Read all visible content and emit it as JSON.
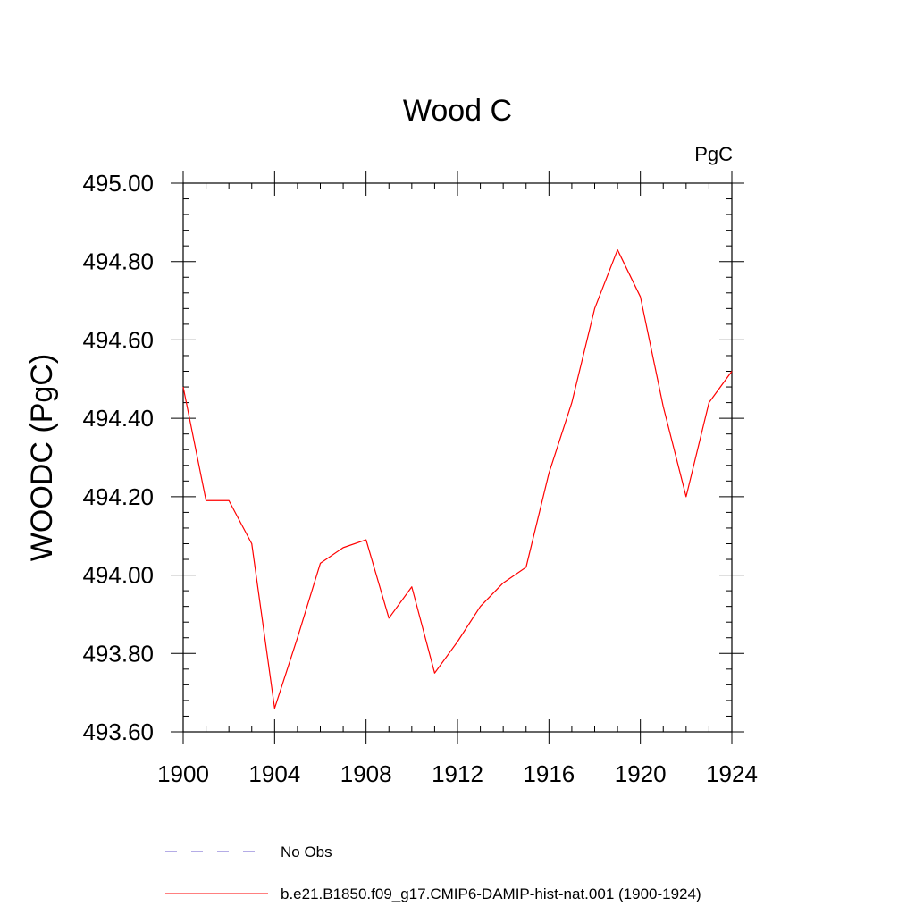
{
  "chart_data": {
    "type": "line",
    "title": "Wood C",
    "units_label": "PgC",
    "xlabel": "",
    "ylabel": "WOODC  (PgC)",
    "xlim": [
      1900,
      1924
    ],
    "ylim": [
      493.6,
      495.0
    ],
    "xticks": [
      1900,
      1904,
      1908,
      1912,
      1916,
      1920,
      1924
    ],
    "xtick_labels": [
      "1900",
      "1904",
      "1908",
      "1912",
      "1916",
      "1920",
      "1924"
    ],
    "yticks": [
      493.6,
      493.8,
      494.0,
      494.2,
      494.4,
      494.6,
      494.8,
      495.0
    ],
    "ytick_labels": [
      "493.60",
      "493.80",
      "494.00",
      "494.20",
      "494.40",
      "494.60",
      "494.80",
      "495.00"
    ],
    "x_minor_step": 1,
    "y_minor_step": 0.04,
    "grid": false,
    "legend_position": "bottom",
    "legend": [
      {
        "label": "No Obs",
        "color": "#6a5acd",
        "style": "dashed"
      },
      {
        "label": "b.e21.B1850.f09_g17.CMIP6-DAMIP-hist-nat.001 (1900-1924)",
        "color": "#ff0000",
        "style": "solid"
      }
    ],
    "series": [
      {
        "name": "b.e21.B1850.f09_g17.CMIP6-DAMIP-hist-nat.001 (1900-1924)",
        "color": "#ff0000",
        "x": [
          1900,
          1901,
          1902,
          1903,
          1904,
          1905,
          1906,
          1907,
          1908,
          1909,
          1910,
          1911,
          1912,
          1913,
          1914,
          1915,
          1916,
          1917,
          1918,
          1919,
          1920,
          1921,
          1922,
          1923,
          1924
        ],
        "y": [
          494.48,
          494.19,
          494.19,
          494.08,
          493.66,
          493.84,
          494.03,
          494.07,
          494.09,
          493.89,
          493.97,
          493.75,
          493.83,
          493.92,
          493.98,
          494.02,
          494.26,
          494.44,
          494.68,
          494.83,
          494.71,
          494.43,
          494.2,
          494.44,
          494.52
        ]
      }
    ]
  }
}
